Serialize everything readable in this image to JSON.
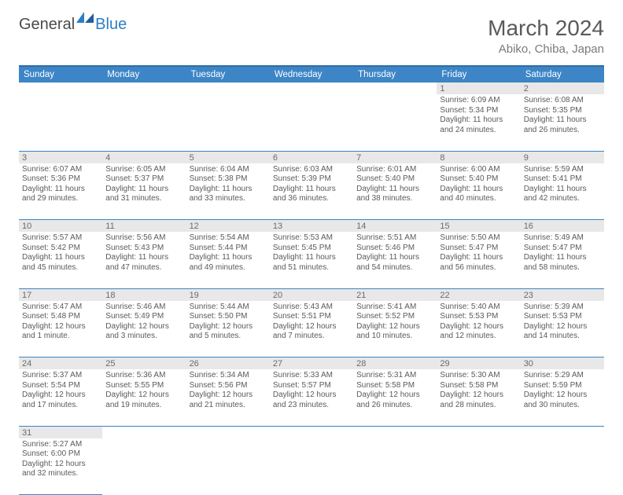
{
  "brand": {
    "text1": "General",
    "text2": "Blue",
    "text1_color": "#4a4a4a",
    "text2_color": "#2b7fc4",
    "icon_fill": "#2b7fc4"
  },
  "header": {
    "title": "March 2024",
    "location": "Abiko, Chiba, Japan",
    "title_color": "#5a5a5a",
    "location_color": "#7a7a7a"
  },
  "styles": {
    "header_bg": "#3d85c6",
    "header_border": "#2e6da4",
    "daynum_bg": "#e8e8e8",
    "cell_border": "#3d85c6",
    "text_color": "#5a5a5a"
  },
  "weekdays": [
    "Sunday",
    "Monday",
    "Tuesday",
    "Wednesday",
    "Thursday",
    "Friday",
    "Saturday"
  ],
  "weeks": [
    [
      null,
      null,
      null,
      null,
      null,
      {
        "n": "1",
        "sr": "Sunrise: 6:09 AM",
        "ss": "Sunset: 5:34 PM",
        "dl": "Daylight: 11 hours and 24 minutes."
      },
      {
        "n": "2",
        "sr": "Sunrise: 6:08 AM",
        "ss": "Sunset: 5:35 PM",
        "dl": "Daylight: 11 hours and 26 minutes."
      }
    ],
    [
      {
        "n": "3",
        "sr": "Sunrise: 6:07 AM",
        "ss": "Sunset: 5:36 PM",
        "dl": "Daylight: 11 hours and 29 minutes."
      },
      {
        "n": "4",
        "sr": "Sunrise: 6:05 AM",
        "ss": "Sunset: 5:37 PM",
        "dl": "Daylight: 11 hours and 31 minutes."
      },
      {
        "n": "5",
        "sr": "Sunrise: 6:04 AM",
        "ss": "Sunset: 5:38 PM",
        "dl": "Daylight: 11 hours and 33 minutes."
      },
      {
        "n": "6",
        "sr": "Sunrise: 6:03 AM",
        "ss": "Sunset: 5:39 PM",
        "dl": "Daylight: 11 hours and 36 minutes."
      },
      {
        "n": "7",
        "sr": "Sunrise: 6:01 AM",
        "ss": "Sunset: 5:40 PM",
        "dl": "Daylight: 11 hours and 38 minutes."
      },
      {
        "n": "8",
        "sr": "Sunrise: 6:00 AM",
        "ss": "Sunset: 5:40 PM",
        "dl": "Daylight: 11 hours and 40 minutes."
      },
      {
        "n": "9",
        "sr": "Sunrise: 5:59 AM",
        "ss": "Sunset: 5:41 PM",
        "dl": "Daylight: 11 hours and 42 minutes."
      }
    ],
    [
      {
        "n": "10",
        "sr": "Sunrise: 5:57 AM",
        "ss": "Sunset: 5:42 PM",
        "dl": "Daylight: 11 hours and 45 minutes."
      },
      {
        "n": "11",
        "sr": "Sunrise: 5:56 AM",
        "ss": "Sunset: 5:43 PM",
        "dl": "Daylight: 11 hours and 47 minutes."
      },
      {
        "n": "12",
        "sr": "Sunrise: 5:54 AM",
        "ss": "Sunset: 5:44 PM",
        "dl": "Daylight: 11 hours and 49 minutes."
      },
      {
        "n": "13",
        "sr": "Sunrise: 5:53 AM",
        "ss": "Sunset: 5:45 PM",
        "dl": "Daylight: 11 hours and 51 minutes."
      },
      {
        "n": "14",
        "sr": "Sunrise: 5:51 AM",
        "ss": "Sunset: 5:46 PM",
        "dl": "Daylight: 11 hours and 54 minutes."
      },
      {
        "n": "15",
        "sr": "Sunrise: 5:50 AM",
        "ss": "Sunset: 5:47 PM",
        "dl": "Daylight: 11 hours and 56 minutes."
      },
      {
        "n": "16",
        "sr": "Sunrise: 5:49 AM",
        "ss": "Sunset: 5:47 PM",
        "dl": "Daylight: 11 hours and 58 minutes."
      }
    ],
    [
      {
        "n": "17",
        "sr": "Sunrise: 5:47 AM",
        "ss": "Sunset: 5:48 PM",
        "dl": "Daylight: 12 hours and 1 minute."
      },
      {
        "n": "18",
        "sr": "Sunrise: 5:46 AM",
        "ss": "Sunset: 5:49 PM",
        "dl": "Daylight: 12 hours and 3 minutes."
      },
      {
        "n": "19",
        "sr": "Sunrise: 5:44 AM",
        "ss": "Sunset: 5:50 PM",
        "dl": "Daylight: 12 hours and 5 minutes."
      },
      {
        "n": "20",
        "sr": "Sunrise: 5:43 AM",
        "ss": "Sunset: 5:51 PM",
        "dl": "Daylight: 12 hours and 7 minutes."
      },
      {
        "n": "21",
        "sr": "Sunrise: 5:41 AM",
        "ss": "Sunset: 5:52 PM",
        "dl": "Daylight: 12 hours and 10 minutes."
      },
      {
        "n": "22",
        "sr": "Sunrise: 5:40 AM",
        "ss": "Sunset: 5:53 PM",
        "dl": "Daylight: 12 hours and 12 minutes."
      },
      {
        "n": "23",
        "sr": "Sunrise: 5:39 AM",
        "ss": "Sunset: 5:53 PM",
        "dl": "Daylight: 12 hours and 14 minutes."
      }
    ],
    [
      {
        "n": "24",
        "sr": "Sunrise: 5:37 AM",
        "ss": "Sunset: 5:54 PM",
        "dl": "Daylight: 12 hours and 17 minutes."
      },
      {
        "n": "25",
        "sr": "Sunrise: 5:36 AM",
        "ss": "Sunset: 5:55 PM",
        "dl": "Daylight: 12 hours and 19 minutes."
      },
      {
        "n": "26",
        "sr": "Sunrise: 5:34 AM",
        "ss": "Sunset: 5:56 PM",
        "dl": "Daylight: 12 hours and 21 minutes."
      },
      {
        "n": "27",
        "sr": "Sunrise: 5:33 AM",
        "ss": "Sunset: 5:57 PM",
        "dl": "Daylight: 12 hours and 23 minutes."
      },
      {
        "n": "28",
        "sr": "Sunrise: 5:31 AM",
        "ss": "Sunset: 5:58 PM",
        "dl": "Daylight: 12 hours and 26 minutes."
      },
      {
        "n": "29",
        "sr": "Sunrise: 5:30 AM",
        "ss": "Sunset: 5:58 PM",
        "dl": "Daylight: 12 hours and 28 minutes."
      },
      {
        "n": "30",
        "sr": "Sunrise: 5:29 AM",
        "ss": "Sunset: 5:59 PM",
        "dl": "Daylight: 12 hours and 30 minutes."
      }
    ],
    [
      {
        "n": "31",
        "sr": "Sunrise: 5:27 AM",
        "ss": "Sunset: 6:00 PM",
        "dl": "Daylight: 12 hours and 32 minutes."
      },
      null,
      null,
      null,
      null,
      null,
      null
    ]
  ]
}
